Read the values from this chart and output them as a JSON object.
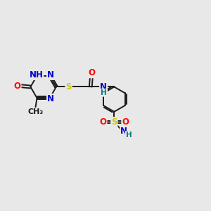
{
  "bg_color": "#e8e8e8",
  "bond_color": "#1a1a1a",
  "atom_colors": {
    "N": "#0000cc",
    "O": "#ff0000",
    "S": "#cccc00",
    "H": "#008080",
    "C": "#1a1a1a"
  },
  "font_size": 8.5,
  "line_width": 1.4,
  "figsize": [
    3.0,
    3.0
  ],
  "dpi": 100
}
